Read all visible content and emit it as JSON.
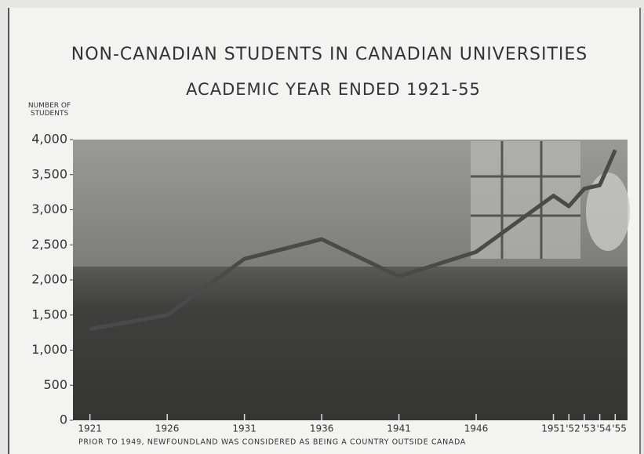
{
  "chart_data": {
    "type": "line",
    "title": "NON-CANADIAN STUDENTS IN CANADIAN UNIVERSITIES",
    "subtitle": "ACADEMIC YEAR ENDED 1921-55",
    "ylabel": "NUMBER OF STUDENTS",
    "note": "PRIOR TO 1949, NEWFOUNDLAND WAS CONSIDERED AS BEING A COUNTRY OUTSIDE CANADA",
    "x": [
      1921,
      1926,
      1931,
      1936,
      1941,
      1946,
      1951,
      1952,
      1953,
      1954,
      1955
    ],
    "series": [
      {
        "color": "#4a4a4a",
        "values": [
          1300,
          1500,
          2300,
          2580,
          2050,
          2400,
          3200,
          3050,
          3300,
          3350,
          3850
        ]
      }
    ],
    "xlim": [
      1920,
      1956
    ],
    "xticks": [
      1921,
      1926,
      1931,
      1936,
      1941,
      1946,
      1951,
      {
        "value": 1952,
        "label": "'52"
      },
      {
        "value": 1953,
        "label": "'53"
      },
      {
        "value": 1954,
        "label": "'54"
      },
      {
        "value": 1955,
        "label": "'55"
      }
    ],
    "ylim": [
      0,
      4000
    ],
    "yticks": [
      0,
      {
        "value": 500,
        "label": "500"
      },
      {
        "value": 1000,
        "label": "1,000"
      },
      {
        "value": 1500,
        "label": "1,500"
      },
      {
        "value": 2000,
        "label": "2,000"
      },
      {
        "value": 2500,
        "label": "2,500"
      },
      {
        "value": 3000,
        "label": "3,000"
      },
      {
        "value": 3500,
        "label": "3,500"
      },
      {
        "value": 4000,
        "label": "4,000"
      }
    ]
  }
}
